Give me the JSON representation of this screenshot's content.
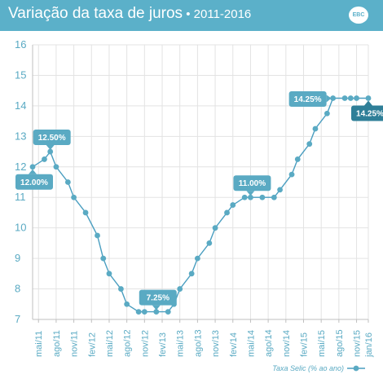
{
  "header": {
    "title": "Variação da taxa de juros",
    "subtitle": " • 2011-2016",
    "logo": "EBC"
  },
  "colors": {
    "header_bg": "#5bb0c9",
    "line": "#4a9ec0",
    "marker": "#5aaac3",
    "callout": "#5aaac3",
    "callout_dark": "#2f7f98",
    "grid": "#e3e3e3",
    "axis": "#bfbfbf"
  },
  "chart_data": {
    "type": "line",
    "title": "Variação da taxa de juros • 2011-2016",
    "xlabel": "",
    "ylabel": "",
    "ylim": [
      7,
      16
    ],
    "yticks": [
      "16",
      "15",
      "14",
      "13",
      "12",
      "11",
      "10",
      "9",
      "8",
      "7"
    ],
    "grid": true,
    "legend_position": "bottom-right",
    "tick_labels": [
      "mai/11",
      "ago/11",
      "nov/11",
      "fev/12",
      "mai/12",
      "ago/12",
      "nov/12",
      "fev/13",
      "mai/13",
      "ago/13",
      "nov/13",
      "fev/14",
      "mai/14",
      "ago/14",
      "nov/14",
      "fev/15",
      "mai/15",
      "ago/15",
      "nov/15",
      "jan/16"
    ],
    "series": [
      {
        "name": "Taxa Selic (% ao ano)",
        "points": [
          {
            "x": "2011-04",
            "y": 12.0
          },
          {
            "x": "2011-06",
            "y": 12.25
          },
          {
            "x": "2011-07",
            "y": 12.5
          },
          {
            "x": "2011-08",
            "y": 12.0
          },
          {
            "x": "2011-10",
            "y": 11.5
          },
          {
            "x": "2011-11",
            "y": 11.0
          },
          {
            "x": "2012-01",
            "y": 10.5
          },
          {
            "x": "2012-03",
            "y": 9.75
          },
          {
            "x": "2012-04",
            "y": 9.0
          },
          {
            "x": "2012-05",
            "y": 8.5
          },
          {
            "x": "2012-07",
            "y": 8.0
          },
          {
            "x": "2012-08",
            "y": 7.5
          },
          {
            "x": "2012-10",
            "y": 7.25
          },
          {
            "x": "2012-11",
            "y": 7.25
          },
          {
            "x": "2013-01",
            "y": 7.25
          },
          {
            "x": "2013-03",
            "y": 7.25
          },
          {
            "x": "2013-04",
            "y": 7.5
          },
          {
            "x": "2013-05",
            "y": 8.0
          },
          {
            "x": "2013-07",
            "y": 8.5
          },
          {
            "x": "2013-08",
            "y": 9.0
          },
          {
            "x": "2013-10",
            "y": 9.5
          },
          {
            "x": "2013-11",
            "y": 10.0
          },
          {
            "x": "2014-01",
            "y": 10.5
          },
          {
            "x": "2014-02",
            "y": 10.75
          },
          {
            "x": "2014-04",
            "y": 11.0
          },
          {
            "x": "2014-05",
            "y": 11.0
          },
          {
            "x": "2014-07",
            "y": 11.0
          },
          {
            "x": "2014-09",
            "y": 11.0
          },
          {
            "x": "2014-10",
            "y": 11.25
          },
          {
            "x": "2014-12",
            "y": 11.75
          },
          {
            "x": "2015-01",
            "y": 12.25
          },
          {
            "x": "2015-03",
            "y": 12.75
          },
          {
            "x": "2015-04",
            "y": 13.25
          },
          {
            "x": "2015-06",
            "y": 13.75
          },
          {
            "x": "2015-07",
            "y": 14.25
          },
          {
            "x": "2015-09",
            "y": 14.25
          },
          {
            "x": "2015-10",
            "y": 14.25
          },
          {
            "x": "2015-11",
            "y": 14.25
          },
          {
            "x": "2016-01",
            "y": 14.25
          }
        ]
      }
    ],
    "annotations": [
      {
        "text": "12.50%",
        "x": "2011-07",
        "y": 12.5,
        "placement": "above"
      },
      {
        "text": "12.00%",
        "x": "2011-04",
        "y": 12.0,
        "placement": "below"
      },
      {
        "text": "7.25%",
        "x": "2013-01",
        "y": 7.25,
        "placement": "above"
      },
      {
        "text": "11.00%",
        "x": "2014-05",
        "y": 11.0,
        "placement": "above"
      },
      {
        "text": "14.25%",
        "x": "2015-07",
        "y": 14.25,
        "placement": "left"
      },
      {
        "text": "14.25%",
        "x": "2016-01",
        "y": 14.25,
        "placement": "below",
        "dark": true
      }
    ]
  }
}
